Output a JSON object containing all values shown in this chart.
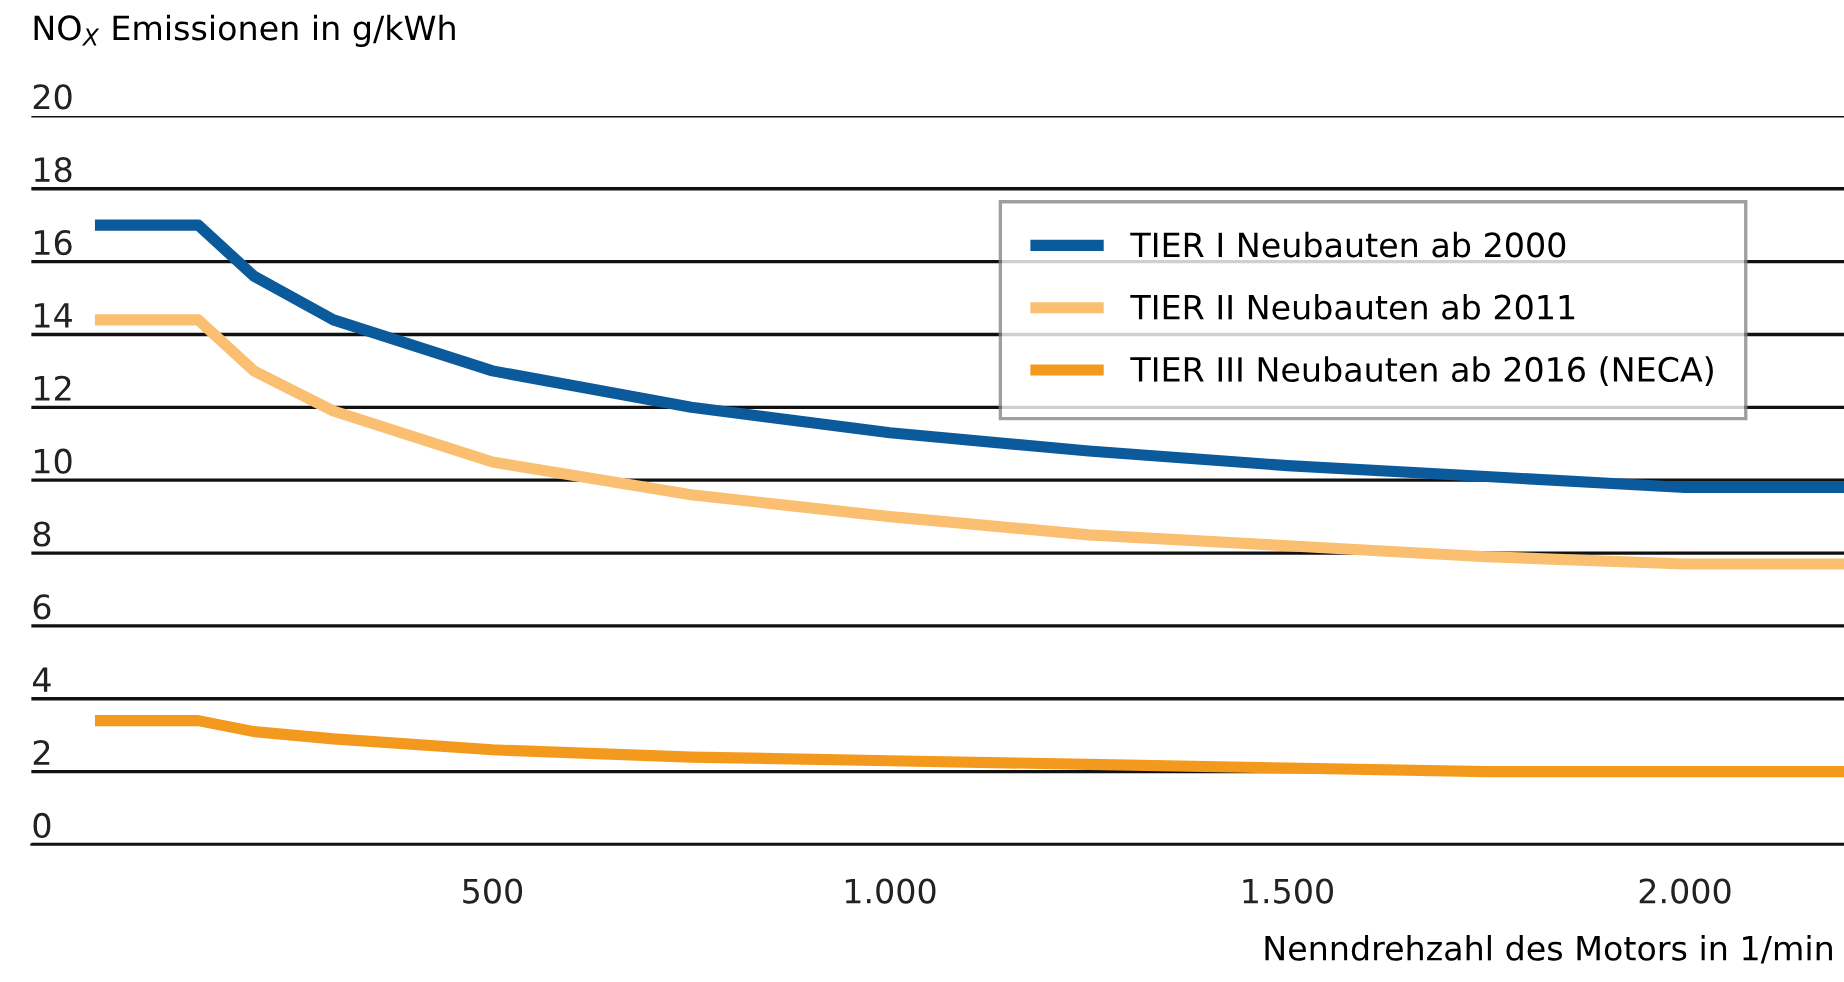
{
  "chart_data": {
    "type": "line",
    "ylabel": "NO$_{X}$ Emissionen in g/kWh",
    "xlabel": "Nenndrehzahl des Motors in 1/min",
    "x": [
      0,
      130,
      200,
      300,
      500,
      750,
      1000,
      1250,
      1500,
      1750,
      2000,
      2200
    ],
    "series": [
      {
        "name": "TIER I Neubauten ab 2000",
        "color": "#0b5a9c",
        "values": [
          17,
          17,
          15.6,
          14.4,
          13.0,
          12.0,
          11.3,
          10.8,
          10.4,
          10.1,
          9.8,
          9.8
        ]
      },
      {
        "name": "TIER II Neubauten ab 2011",
        "color": "#fbbf72",
        "values": [
          14.4,
          14.4,
          13.0,
          11.9,
          10.5,
          9.6,
          9.0,
          8.5,
          8.2,
          7.9,
          7.7,
          7.7
        ]
      },
      {
        "name": "TIER III Neubauten ab 2016 (NECA)",
        "color": "#f39a1e",
        "values": [
          3.4,
          3.4,
          3.1,
          2.9,
          2.6,
          2.4,
          2.3,
          2.2,
          2.1,
          2.0,
          2.0,
          2.0
        ]
      }
    ],
    "xlim": [
      -80,
      2200
    ],
    "xticks": [
      {
        "value": 500,
        "label": "500"
      },
      {
        "value": 1000,
        "label": "1.000"
      },
      {
        "value": 1500,
        "label": "1.500"
      },
      {
        "value": 2000,
        "label": "2.000"
      }
    ],
    "ylim": [
      0,
      20
    ],
    "yticks": [
      0,
      2,
      4,
      6,
      8,
      10,
      12,
      14,
      16,
      18,
      20
    ],
    "grid": "y",
    "legend": "top right",
    "marker": "none",
    "line_style": "solid"
  }
}
